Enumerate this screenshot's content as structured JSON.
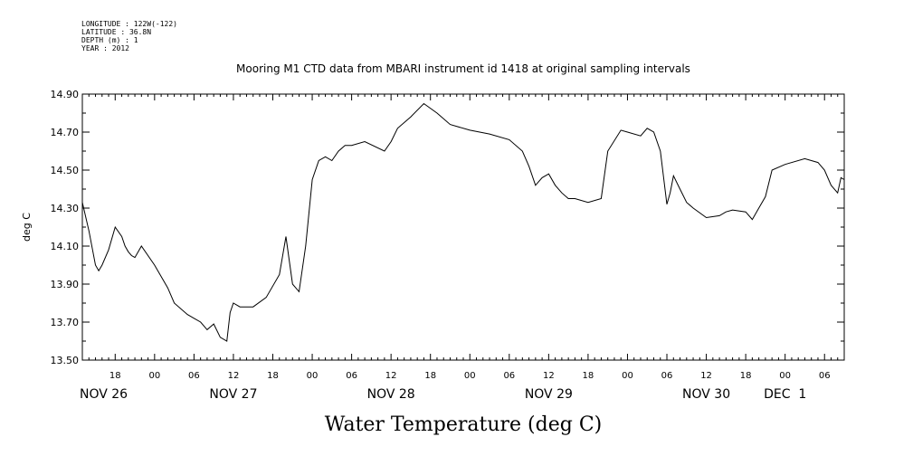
{
  "header": {
    "longitude": "LONGITUDE : 122W(-122)",
    "latitude": "LATITUDE : 36.8N",
    "depth": "DEPTH (m) : 1",
    "year": "YEAR : 2012"
  },
  "chart_data": {
    "type": "line",
    "title": "Mooring M1 CTD data from MBARI instrument id 1418 at original sampling intervals",
    "bottom_title": "Water Temperature (deg C)",
    "xlabel": "",
    "ylabel": "deg C",
    "ylim": [
      13.5,
      14.9
    ],
    "xlim": [
      "2012-11-26T13:00",
      "2012-12-01T09:00"
    ],
    "yticks": [
      "13.50",
      "13.70",
      "13.90",
      "14.10",
      "14.30",
      "14.50",
      "14.70",
      "14.90"
    ],
    "yticks_values": [
      13.5,
      13.7,
      13.9,
      14.1,
      14.3,
      14.5,
      14.7,
      14.9
    ],
    "xticks_hours": [
      {
        "t": "2012-11-26T18:00",
        "label": "18"
      },
      {
        "t": "2012-11-27T00:00",
        "label": "00"
      },
      {
        "t": "2012-11-27T06:00",
        "label": "06"
      },
      {
        "t": "2012-11-27T12:00",
        "label": "12"
      },
      {
        "t": "2012-11-27T18:00",
        "label": "18"
      },
      {
        "t": "2012-11-28T00:00",
        "label": "00"
      },
      {
        "t": "2012-11-28T06:00",
        "label": "06"
      },
      {
        "t": "2012-11-28T12:00",
        "label": "12"
      },
      {
        "t": "2012-11-28T18:00",
        "label": "18"
      },
      {
        "t": "2012-11-29T00:00",
        "label": "00"
      },
      {
        "t": "2012-11-29T06:00",
        "label": "06"
      },
      {
        "t": "2012-11-29T12:00",
        "label": "12"
      },
      {
        "t": "2012-11-29T18:00",
        "label": "18"
      },
      {
        "t": "2012-11-30T00:00",
        "label": "00"
      },
      {
        "t": "2012-11-30T06:00",
        "label": "06"
      },
      {
        "t": "2012-11-30T12:00",
        "label": "12"
      },
      {
        "t": "2012-11-30T18:00",
        "label": "18"
      },
      {
        "t": "2012-12-01T00:00",
        "label": "00"
      },
      {
        "t": "2012-12-01T06:00",
        "label": "06"
      }
    ],
    "xticks_days": [
      {
        "t": "2012-11-26T13:00",
        "label": "NOV 26"
      },
      {
        "t": "2012-11-27T12:00",
        "label": "NOV 27"
      },
      {
        "t": "2012-11-28T12:00",
        "label": "NOV 28"
      },
      {
        "t": "2012-11-29T12:00",
        "label": "NOV 29"
      },
      {
        "t": "2012-11-30T12:00",
        "label": "NOV 30"
      },
      {
        "t": "2012-12-01T00:00",
        "label": "DEC  1"
      }
    ],
    "series": [
      {
        "line_color": "#000000",
        "x": [
          "2012-11-26T13:00",
          "2012-11-26T14:00",
          "2012-11-26T15:00",
          "2012-11-26T15:30",
          "2012-11-26T16:00",
          "2012-11-26T17:00",
          "2012-11-26T18:00",
          "2012-11-26T19:00",
          "2012-11-26T19:30",
          "2012-11-26T20:00",
          "2012-11-26T20:30",
          "2012-11-26T21:00",
          "2012-11-26T22:00",
          "2012-11-27T00:00",
          "2012-11-27T02:00",
          "2012-11-27T03:00",
          "2012-11-27T05:00",
          "2012-11-27T06:00",
          "2012-11-27T07:00",
          "2012-11-27T08:00",
          "2012-11-27T09:00",
          "2012-11-27T10:00",
          "2012-11-27T11:00",
          "2012-11-27T11:30",
          "2012-11-27T12:00",
          "2012-11-27T13:00",
          "2012-11-27T15:00",
          "2012-11-27T17:00",
          "2012-11-27T19:00",
          "2012-11-27T20:00",
          "2012-11-27T21:00",
          "2012-11-27T22:00",
          "2012-11-27T23:00",
          "2012-11-28T00:00",
          "2012-11-28T01:00",
          "2012-11-28T02:00",
          "2012-11-28T03:00",
          "2012-11-28T04:00",
          "2012-11-28T05:00",
          "2012-11-28T06:00",
          "2012-11-28T08:00",
          "2012-11-28T11:00",
          "2012-11-28T12:00",
          "2012-11-28T13:00",
          "2012-11-28T15:00",
          "2012-11-28T17:00",
          "2012-11-28T19:00",
          "2012-11-28T21:00",
          "2012-11-29T00:00",
          "2012-11-29T03:00",
          "2012-11-29T06:00",
          "2012-11-29T08:00",
          "2012-11-29T09:00",
          "2012-11-29T10:00",
          "2012-11-29T11:00",
          "2012-11-29T12:00",
          "2012-11-29T13:00",
          "2012-11-29T14:00",
          "2012-11-29T15:00",
          "2012-11-29T16:00",
          "2012-11-29T18:00",
          "2012-11-29T20:00",
          "2012-11-29T21:00",
          "2012-11-29T23:00",
          "2012-11-30T00:00",
          "2012-11-30T02:00",
          "2012-11-30T03:00",
          "2012-11-30T04:00",
          "2012-11-30T05:00",
          "2012-11-30T06:00",
          "2012-11-30T06:30",
          "2012-11-30T07:00",
          "2012-11-30T08:00",
          "2012-11-30T09:00",
          "2012-11-30T10:00",
          "2012-11-30T12:00",
          "2012-11-30T14:00",
          "2012-11-30T15:00",
          "2012-11-30T16:00",
          "2012-11-30T18:00",
          "2012-11-30T19:00",
          "2012-11-30T20:00",
          "2012-11-30T21:00",
          "2012-11-30T22:00",
          "2012-12-01T00:00",
          "2012-12-01T03:00",
          "2012-12-01T05:00",
          "2012-12-01T06:00",
          "2012-12-01T07:00",
          "2012-12-01T08:00",
          "2012-12-01T08:30",
          "2012-12-01T09:00"
        ],
        "y": [
          14.33,
          14.18,
          14.0,
          13.97,
          14.0,
          14.08,
          14.2,
          14.15,
          14.1,
          14.07,
          14.05,
          14.04,
          14.1,
          14.0,
          13.88,
          13.8,
          13.74,
          13.72,
          13.7,
          13.66,
          13.69,
          13.62,
          13.6,
          13.75,
          13.8,
          13.78,
          13.78,
          13.83,
          13.95,
          14.15,
          13.9,
          13.86,
          14.1,
          14.45,
          14.55,
          14.57,
          14.55,
          14.6,
          14.63,
          14.63,
          14.65,
          14.6,
          14.65,
          14.72,
          14.78,
          14.85,
          14.8,
          14.74,
          14.71,
          14.69,
          14.66,
          14.6,
          14.52,
          14.42,
          14.46,
          14.48,
          14.42,
          14.38,
          14.35,
          14.35,
          14.33,
          14.35,
          14.6,
          14.71,
          14.7,
          14.68,
          14.72,
          14.7,
          14.6,
          14.32,
          14.38,
          14.47,
          14.4,
          14.33,
          14.3,
          14.25,
          14.26,
          14.28,
          14.29,
          14.28,
          14.24,
          14.3,
          14.36,
          14.5,
          14.53,
          14.56,
          14.54,
          14.5,
          14.42,
          14.38,
          14.46,
          14.45
        ]
      }
    ]
  }
}
